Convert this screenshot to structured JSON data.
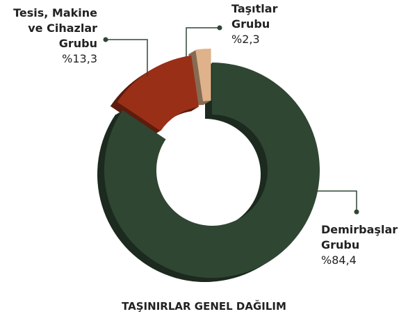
{
  "chart_data": {
    "type": "donut",
    "title": "TAŞINIRLAR GENEL DAĞILIM",
    "categories": [
      "Demirbaşlar Grubu",
      "Tesis, Makine ve Cihazlar Grubu",
      "Taşıtlar Grubu"
    ],
    "values": [
      84.4,
      13.3,
      2.3
    ],
    "value_labels": [
      "%84,4",
      "%13,3",
      "%2,3"
    ],
    "colors": [
      "#2f4633",
      "#9a2f17",
      "#dfb28b"
    ]
  }
}
